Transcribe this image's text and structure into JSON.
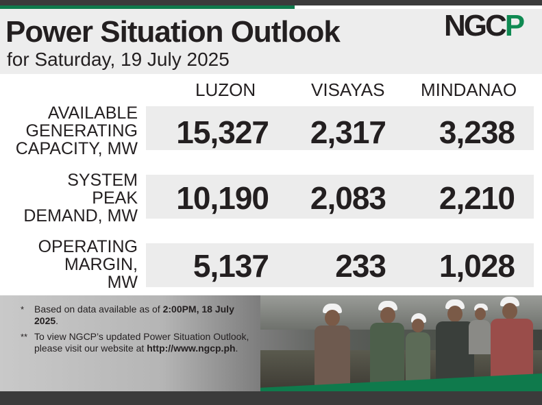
{
  "header": {
    "title": "Power Situation Outlook",
    "subtitle": "for Saturday, 19 July 2025",
    "logo_text": "NGCP",
    "logo_main": "NGC",
    "logo_accent": "P"
  },
  "columns": [
    "LUZON",
    "VISAYAS",
    "MINDANAO"
  ],
  "rows": [
    {
      "label_lines": [
        "AVAILABLE",
        "GENERATING",
        "CAPACITY, MW"
      ],
      "values": [
        "15,327",
        "2,317",
        "3,238"
      ]
    },
    {
      "label_lines": [
        "SYSTEM",
        "PEAK",
        "DEMAND, MW"
      ],
      "values": [
        "10,190",
        "2,083",
        "2,210"
      ]
    },
    {
      "label_lines": [
        "OPERATING",
        "MARGIN,",
        "MW"
      ],
      "values": [
        "5,137",
        "233",
        "1,028"
      ]
    }
  ],
  "notes": [
    {
      "mark": "*",
      "text_before": "Based on data available as of ",
      "bold": "2:00PM, 18 July 2025",
      "text_after": "."
    },
    {
      "mark": "**",
      "text_before": "To view NGCP’s updated Power Situation Outlook, please visit our website at ",
      "bold": "http://www.ngcp.ph",
      "text_after": "."
    }
  ],
  "colors": {
    "brand_green": "#0f7a4c",
    "dark_bar": "#3b3b3b",
    "band_gray": "#ececec",
    "text": "#231f20"
  }
}
